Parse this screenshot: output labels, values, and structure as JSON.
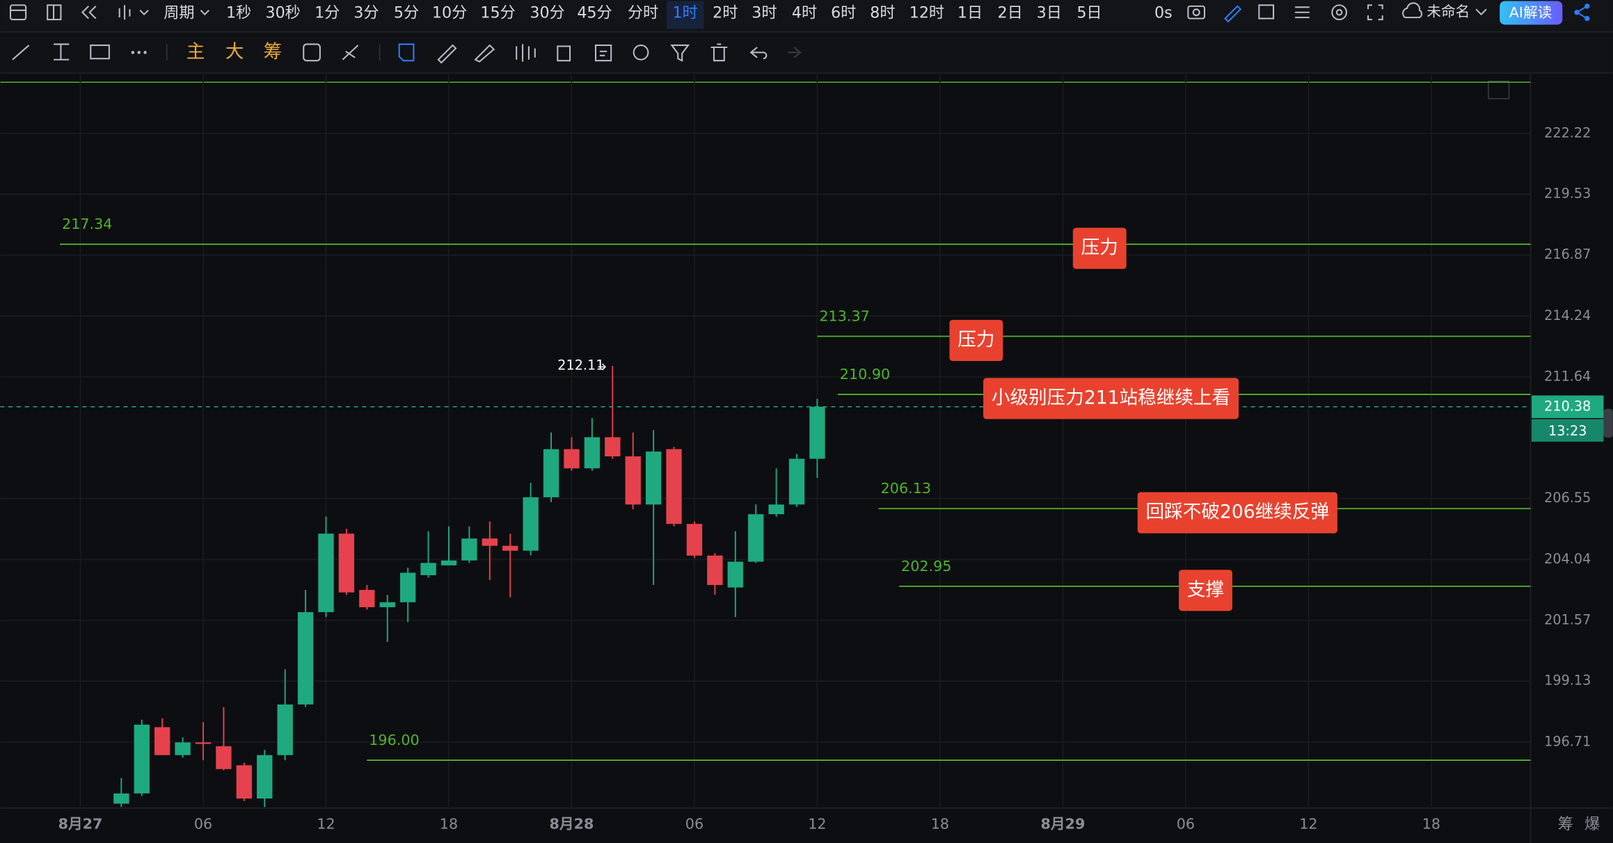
{
  "toolbar": {
    "period_menu": "周期",
    "periods": [
      "1秒",
      "30秒",
      "1分",
      "3分",
      "5分",
      "10分",
      "15分",
      "30分",
      "45分",
      "分时",
      "1时",
      "2时",
      "3时",
      "4时",
      "6时",
      "8时",
      "12时",
      "1日",
      "2日",
      "3日",
      "5日"
    ],
    "active_period": 10,
    "timer": "0s",
    "layout_name": "未命名",
    "ai_button": "AI解读"
  },
  "drawing_bar": {
    "indicators": [
      "主",
      "大",
      "筹"
    ]
  },
  "side_tabs": [
    "筹",
    "爆"
  ],
  "chart_data": {
    "type": "candlestick",
    "log": true,
    "grid": true,
    "up_color": "#1fa97f",
    "down_color": "#e5424d",
    "level_color": "#4fb52a",
    "x": [
      2,
      3,
      4,
      5,
      6,
      7,
      8,
      9,
      10,
      11,
      12,
      13,
      14,
      15,
      16,
      17,
      18,
      19,
      20,
      21,
      22,
      23,
      24,
      25,
      26,
      27,
      28,
      29,
      30,
      31,
      32,
      33,
      34,
      35,
      36
    ],
    "open": [
      194.3,
      194.7,
      197.3,
      196.2,
      196.7,
      196.55,
      195.8,
      194.5,
      196.2,
      198.2,
      201.9,
      205.1,
      202.8,
      202.1,
      202.3,
      203.4,
      203.8,
      204.0,
      204.9,
      204.6,
      204.4,
      206.6,
      208.6,
      207.8,
      209.1,
      208.3,
      206.3,
      208.6,
      205.5,
      204.2,
      202.9,
      203.95,
      205.9,
      206.3,
      208.2
    ],
    "high": [
      195.3,
      197.6,
      197.65,
      196.9,
      197.5,
      198.1,
      195.9,
      196.4,
      199.6,
      202.8,
      205.8,
      205.3,
      203.0,
      202.6,
      203.7,
      205.2,
      205.4,
      205.4,
      205.6,
      205.1,
      207.2,
      209.3,
      209.1,
      209.9,
      212.11,
      209.3,
      209.4,
      208.7,
      205.6,
      204.3,
      205.2,
      206.3,
      207.8,
      208.4,
      210.72
    ],
    "low": [
      194.0,
      194.6,
      196.2,
      196.1,
      196.0,
      195.6,
      194.4,
      194.0,
      196.0,
      198.1,
      201.7,
      202.6,
      202.0,
      200.7,
      201.5,
      203.3,
      203.8,
      203.9,
      203.2,
      202.5,
      204.2,
      206.4,
      207.7,
      207.7,
      208.2,
      206.1,
      203.0,
      205.4,
      204.1,
      202.6,
      201.7,
      203.9,
      205.8,
      206.2,
      207.4
    ],
    "close": [
      194.7,
      197.4,
      196.2,
      196.7,
      196.65,
      195.65,
      194.5,
      196.2,
      198.2,
      201.9,
      205.1,
      202.7,
      202.1,
      202.3,
      203.5,
      203.9,
      204.0,
      204.9,
      204.6,
      204.4,
      206.6,
      208.6,
      207.8,
      209.1,
      208.3,
      206.3,
      208.5,
      205.5,
      204.2,
      203.0,
      203.95,
      205.9,
      206.3,
      208.2,
      210.38
    ],
    "xlim": [
      -3.92,
      70.85
    ],
    "xticks": [
      {
        "value": 0,
        "label": "8月27"
      },
      {
        "value": 6,
        "label": "06"
      },
      12,
      18,
      {
        "value": 24,
        "label": "8月28"
      },
      {
        "value": 30,
        "label": "06"
      },
      {
        "value": 36,
        "label": "12"
      },
      {
        "value": 42,
        "label": "18"
      },
      {
        "value": 48,
        "label": "8月29"
      },
      {
        "value": 54,
        "label": "06"
      },
      {
        "value": 60,
        "label": "12"
      },
      {
        "value": 66,
        "label": "18"
      }
    ],
    "ylim": [
      194.17,
      224.88
    ],
    "yticks": [
      196.71,
      199.13,
      201.57,
      204.04,
      206.55,
      211.64,
      214.24,
      216.87,
      219.53,
      222.22
    ],
    "levels": [
      {
        "value": 217.34,
        "x": -1
      },
      {
        "value": 213.37,
        "x": 36
      },
      {
        "value": 210.9,
        "label": "210.90",
        "x": 37
      },
      {
        "value": 206.13,
        "x": 39
      },
      {
        "value": 202.95,
        "x": 40
      },
      {
        "value": 196.0,
        "label": "196.00",
        "x": 14
      }
    ],
    "annotations": [
      "压力",
      "压力",
      "小级别压力211站稳继续上看",
      "回踩不破206继续反弹",
      "支撑"
    ],
    "countdown": "13:23"
  }
}
